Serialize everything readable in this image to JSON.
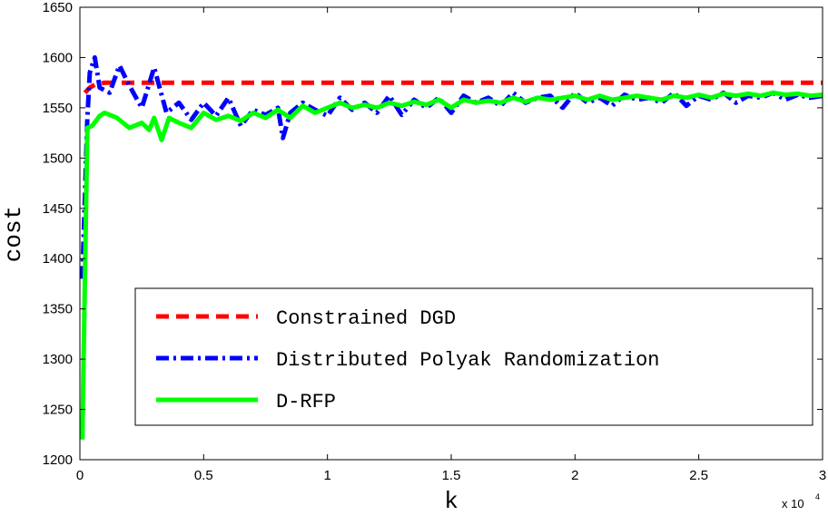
{
  "chart_data": {
    "type": "line",
    "title": "",
    "xlabel": "k",
    "ylabel": "cost",
    "x_multiplier_label": "x 10",
    "x_multiplier_exp": "4",
    "xlim": [
      0,
      3
    ],
    "ylim": [
      1200,
      1650
    ],
    "xticks": [
      "0",
      "0.5",
      "1",
      "1.5",
      "2",
      "2.5",
      "3"
    ],
    "yticks": [
      "1200",
      "1250",
      "1300",
      "1350",
      "1400",
      "1450",
      "1500",
      "1550",
      "1600",
      "1650"
    ],
    "grid": false,
    "legend_position": "bottom-right",
    "series": [
      {
        "name": "Constrained DGD",
        "color": "#ff0000",
        "style": "dashed",
        "x": [
          0.02,
          0.04,
          0.06,
          0.1,
          0.2,
          0.5,
          1.0,
          1.5,
          2.0,
          2.5,
          3.0
        ],
        "y": [
          1565,
          1570,
          1573,
          1575,
          1575,
          1575,
          1575,
          1575,
          1575,
          1575,
          1575
        ]
      },
      {
        "name": "Distributed Polyak Randomization",
        "color": "#0000ff",
        "style": "dashdot",
        "x": [
          0.01,
          0.02,
          0.03,
          0.04,
          0.06,
          0.08,
          0.12,
          0.16,
          0.2,
          0.25,
          0.3,
          0.35,
          0.4,
          0.45,
          0.5,
          0.55,
          0.6,
          0.65,
          0.7,
          0.75,
          0.8,
          0.82,
          0.85,
          0.9,
          0.95,
          1.0,
          1.05,
          1.1,
          1.15,
          1.2,
          1.25,
          1.3,
          1.35,
          1.4,
          1.45,
          1.5,
          1.55,
          1.6,
          1.65,
          1.7,
          1.75,
          1.8,
          1.85,
          1.9,
          1.95,
          2.0,
          2.05,
          2.1,
          2.15,
          2.2,
          2.25,
          2.3,
          2.35,
          2.4,
          2.45,
          2.5,
          2.55,
          2.6,
          2.65,
          2.7,
          2.75,
          2.8,
          2.85,
          2.9,
          2.95,
          3.0
        ],
        "y": [
          1380,
          1460,
          1540,
          1585,
          1600,
          1570,
          1565,
          1592,
          1572,
          1550,
          1590,
          1545,
          1555,
          1538,
          1555,
          1542,
          1560,
          1532,
          1548,
          1543,
          1550,
          1520,
          1545,
          1555,
          1548,
          1542,
          1560,
          1548,
          1555,
          1545,
          1562,
          1543,
          1558,
          1550,
          1560,
          1545,
          1562,
          1555,
          1560,
          1552,
          1565,
          1555,
          1560,
          1562,
          1550,
          1565,
          1555,
          1560,
          1552,
          1563,
          1558,
          1560,
          1555,
          1565,
          1552,
          1562,
          1558,
          1565,
          1555,
          1562,
          1560,
          1565,
          1558,
          1563,
          1560,
          1562
        ]
      },
      {
        "name": "D-RFP",
        "color": "#00ff00",
        "style": "solid",
        "x": [
          0.01,
          0.02,
          0.03,
          0.05,
          0.08,
          0.1,
          0.15,
          0.2,
          0.25,
          0.28,
          0.3,
          0.33,
          0.36,
          0.4,
          0.45,
          0.5,
          0.55,
          0.6,
          0.65,
          0.7,
          0.75,
          0.8,
          0.85,
          0.9,
          0.95,
          1.0,
          1.05,
          1.1,
          1.15,
          1.2,
          1.25,
          1.3,
          1.35,
          1.4,
          1.45,
          1.5,
          1.55,
          1.6,
          1.65,
          1.7,
          1.75,
          1.8,
          1.85,
          1.9,
          1.95,
          2.0,
          2.05,
          2.1,
          2.15,
          2.2,
          2.25,
          2.3,
          2.35,
          2.4,
          2.45,
          2.5,
          2.55,
          2.6,
          2.65,
          2.7,
          2.75,
          2.8,
          2.85,
          2.9,
          2.95,
          3.0
        ],
        "y": [
          1220,
          1380,
          1530,
          1532,
          1542,
          1545,
          1540,
          1530,
          1535,
          1528,
          1540,
          1518,
          1540,
          1535,
          1530,
          1545,
          1538,
          1542,
          1537,
          1545,
          1540,
          1548,
          1540,
          1552,
          1545,
          1550,
          1555,
          1550,
          1553,
          1550,
          1555,
          1552,
          1556,
          1553,
          1558,
          1550,
          1558,
          1555,
          1557,
          1555,
          1560,
          1556,
          1560,
          1558,
          1560,
          1562,
          1558,
          1562,
          1558,
          1560,
          1562,
          1560,
          1558,
          1562,
          1560,
          1563,
          1560,
          1564,
          1562,
          1564,
          1562,
          1565,
          1563,
          1564,
          1562,
          1563
        ]
      }
    ]
  }
}
